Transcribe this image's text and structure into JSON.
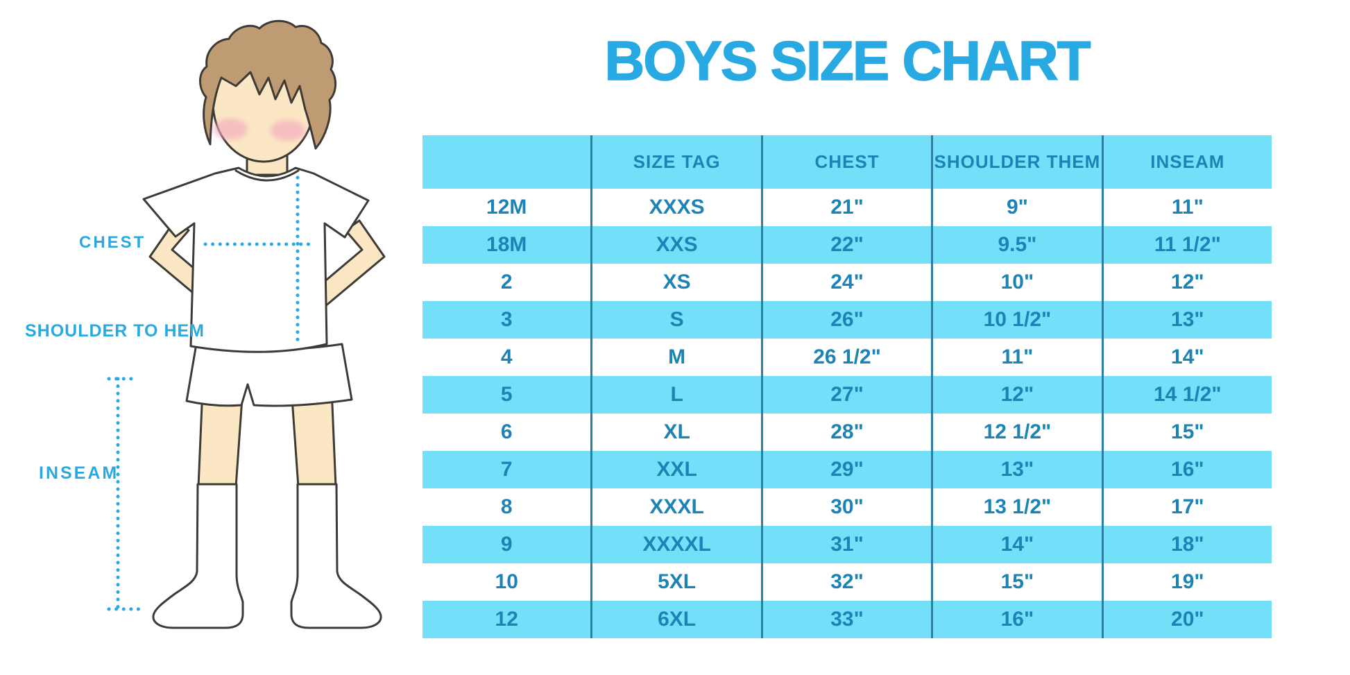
{
  "title": "BOYS SIZE CHART",
  "figure": {
    "labels": {
      "chest": "CHEST",
      "shoulder_to_hem": "SHOULDER TO HEM",
      "inseam": "INSEAM"
    }
  },
  "chart_data": {
    "type": "table",
    "title": "BOYS SIZE CHART",
    "columns": [
      "",
      "SIZE TAG",
      "CHEST",
      "SHOULDER THEM",
      "INSEAM"
    ],
    "rows": [
      [
        "12M",
        "XXXS",
        "21\"",
        "9\"",
        "11\""
      ],
      [
        "18M",
        "XXS",
        "22\"",
        "9.5\"",
        "11 1/2\""
      ],
      [
        "2",
        "XS",
        "24\"",
        "10\"",
        "12\""
      ],
      [
        "3",
        "S",
        "26\"",
        "10 1/2\"",
        "13\""
      ],
      [
        "4",
        "M",
        "26 1/2\"",
        "11\"",
        "14\""
      ],
      [
        "5",
        "L",
        "27\"",
        "12\"",
        "14 1/2\""
      ],
      [
        "6",
        "XL",
        "28\"",
        "12 1/2\"",
        "15\""
      ],
      [
        "7",
        "XXL",
        "29\"",
        "13\"",
        "16\""
      ],
      [
        "8",
        "XXXL",
        "30\"",
        "13 1/2\"",
        "17\""
      ],
      [
        "9",
        "XXXXL",
        "31\"",
        "14\"",
        "18\""
      ],
      [
        "10",
        "5XL",
        "32\"",
        "15\"",
        "19\""
      ],
      [
        "12",
        "6XL",
        "33\"",
        "16\"",
        "20\""
      ]
    ],
    "layout": {
      "header_fill": "cyan",
      "row_striping": "alternating white / cyan starting with white",
      "grid": "vertical column separators only"
    }
  },
  "colors": {
    "accent_blue": "#29A9E1",
    "table_text_blue": "#1D83B5",
    "row_cyan": "#74DFF9",
    "column_line": "#2A7FA4",
    "skin": "#FBE7C4",
    "hair": "#BE9B72",
    "blush": "#F2A9BE",
    "outline": "#3E3A36"
  }
}
